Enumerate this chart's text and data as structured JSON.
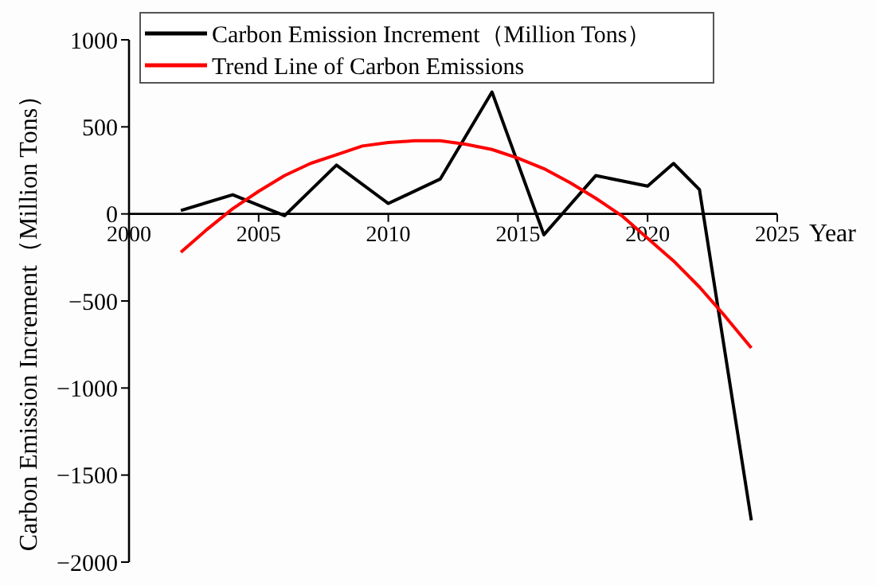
{
  "chart_data": {
    "type": "line",
    "xlabel": "Year",
    "ylabel": "Carbon Emission Increment（Million Tons）",
    "xlim": [
      2000,
      2025
    ],
    "xticks": [
      2000,
      2005,
      2010,
      2015,
      2020,
      2025
    ],
    "ylim": [
      -2000,
      1000
    ],
    "yticks": [
      -2000,
      -1500,
      -1000,
      -500,
      0,
      500,
      1000
    ],
    "legend": "top left",
    "grid": false,
    "series": [
      {
        "name": "Carbon Emission Increment（Million Tons）",
        "color": "#000000",
        "x": [
          2002,
          2004,
          2006,
          2008,
          2010,
          2012,
          2014,
          2016,
          2018,
          2020,
          2021,
          2022,
          2024
        ],
        "values": [
          20,
          110,
          -10,
          280,
          60,
          200,
          700,
          -120,
          220,
          160,
          290,
          140,
          -1760
        ]
      },
      {
        "name": "Trend Line of Carbon Emissions",
        "color": "#ff0000",
        "x": [
          2002,
          2003,
          2004,
          2005,
          2006,
          2007,
          2008,
          2009,
          2010,
          2011,
          2012,
          2013,
          2014,
          2015,
          2016,
          2017,
          2018,
          2019,
          2020,
          2021,
          2022,
          2023,
          2024
        ],
        "values": [
          -220,
          -90,
          30,
          130,
          220,
          290,
          340,
          390,
          410,
          420,
          420,
          400,
          370,
          320,
          260,
          180,
          90,
          -10,
          -140,
          -270,
          -420,
          -590,
          -770
        ]
      }
    ]
  }
}
